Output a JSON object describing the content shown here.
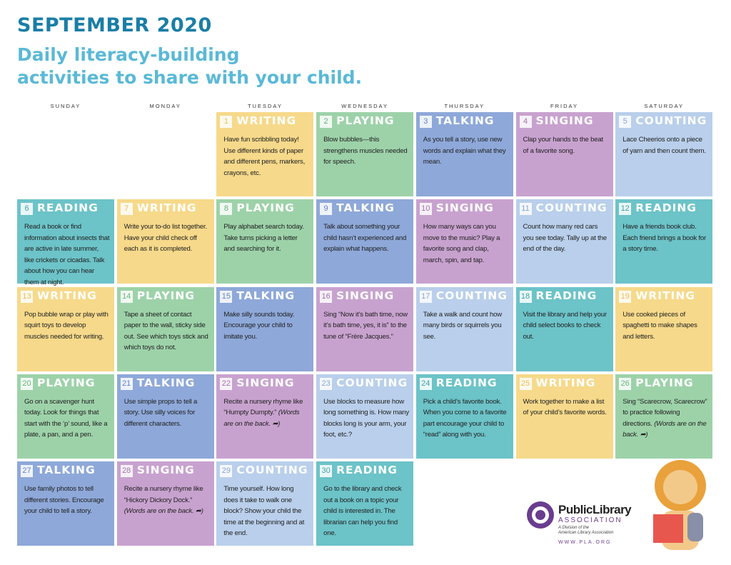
{
  "header": {
    "title": "SEPTEMBER 2020",
    "subtitle": [
      "Daily literacy-building",
      "activities to share with your child."
    ]
  },
  "weekdays": [
    "SUNDAY",
    "MONDAY",
    "TUESDAY",
    "WEDNESDAY",
    "THURSDAY",
    "FRIDAY",
    "SATURDAY"
  ],
  "days": [
    {
      "day": 1,
      "activity": "WRITING",
      "text": "Have fun scribbling today! Use different kinds of paper and different pens, markers, crayons, etc."
    },
    {
      "day": 2,
      "activity": "PLAYING",
      "text": "Blow bubbles—this strengthens muscles needed for speech."
    },
    {
      "day": 3,
      "activity": "TALKING",
      "text": "As you tell a story, use new words and explain what they mean."
    },
    {
      "day": 4,
      "activity": "SINGING",
      "text": "Clap your hands to the beat of a favorite song."
    },
    {
      "day": 5,
      "activity": "COUNTING",
      "text": "Lace Cheerios onto a piece of yarn and then count them."
    },
    {
      "day": 6,
      "activity": "READING",
      "text": "Read a book or find information about insects that are active in late summer, like crickets or cicadas. Talk about how you can hear them at night."
    },
    {
      "day": 7,
      "activity": "WRITING",
      "text": "Write your to-do list together. Have your child check off each as it is completed."
    },
    {
      "day": 8,
      "activity": "PLAYING",
      "text": "Play alphabet search today. Take turns picking a letter and searching for it."
    },
    {
      "day": 9,
      "activity": "TALKING",
      "text": "Talk about something your child hasn’t experienced and explain what happens."
    },
    {
      "day": 10,
      "activity": "SINGING",
      "text": "How many ways can you move to the music? Play a favorite song and clap, march, spin, and tap."
    },
    {
      "day": 11,
      "activity": "COUNTING",
      "text": "Count how many red cars you see today. Tally up at the end of the day."
    },
    {
      "day": 12,
      "activity": "READING",
      "text": "Have a friends book club. Each friend brings a book for a story time."
    },
    {
      "day": 13,
      "activity": "WRITING",
      "text": "Pop bubble wrap or play with squirt toys to develop muscles needed for writing."
    },
    {
      "day": 14,
      "activity": "PLAYING",
      "text": "Tape a sheet of contact paper to the wall, sticky side out. See which toys stick and which toys do not."
    },
    {
      "day": 15,
      "activity": "TALKING",
      "text": "Make silly sounds today. Encourage your child to imitate you."
    },
    {
      "day": 16,
      "activity": "SINGING",
      "text": "Sing “Now it’s bath time, now it’s bath time, yes, it is” to the tune of “Frère Jacques.”"
    },
    {
      "day": 17,
      "activity": "COUNTING",
      "text": "Take a walk and count how many birds or squirrels you see."
    },
    {
      "day": 18,
      "activity": "READING",
      "text": "Visit the library and help your child select books to check out."
    },
    {
      "day": 19,
      "activity": "WRITING",
      "text": "Use cooked pieces of spaghetti to make shapes and letters."
    },
    {
      "day": 20,
      "activity": "PLAYING",
      "text": "Go on a scavenger hunt today. Look for things that start with the ‘p’ sound, like a plate, a pan, and a pen."
    },
    {
      "day": 21,
      "activity": "TALKING",
      "text": "Use simple props to tell a story. Use silly voices for different characters."
    },
    {
      "day": 22,
      "activity": "SINGING",
      "text": "Recite a nursery rhyme like “Humpty Dumpty.”",
      "note": "(Words are on the back. ➦)"
    },
    {
      "day": 23,
      "activity": "COUNTING",
      "text": "Use blocks to measure how long something is. How many blocks long is your arm, your foot, etc.?"
    },
    {
      "day": 24,
      "activity": "READING",
      "text": "Pick a child’s favorite book. When you come to a favorite part encourage your child to “read” along with you."
    },
    {
      "day": 25,
      "activity": "WRITING",
      "text": "Work together to make a list of your child’s favorite words."
    },
    {
      "day": 26,
      "activity": "PLAYING",
      "text": "Sing “Scarecrow, Scarecrow” to practice following directions.",
      "note": "(Words are on the back. ➦)"
    },
    {
      "day": 27,
      "activity": "TALKING",
      "text": "Use family photos to tell different stories. Encourage your child to tell a story."
    },
    {
      "day": 28,
      "activity": "SINGING",
      "text": "Recite a nursery rhyme like “Hickory Dickory Dock.”",
      "note": "(Words are on the back. ➦)"
    },
    {
      "day": 29,
      "activity": "COUNTING",
      "text": "Time yourself. How long does it take to walk one block? Show your child the time at the beginning and at the end."
    },
    {
      "day": 30,
      "activity": "READING",
      "text": "Go to the library and check out a book on a topic your child is interested in. The librarian can help you find one."
    }
  ],
  "logo": {
    "name": "PublicLibrary",
    "association": "ASSOCIATION",
    "division": [
      "A Division of the",
      "American Library Association"
    ],
    "url": "WWW.PLA.ORG"
  }
}
